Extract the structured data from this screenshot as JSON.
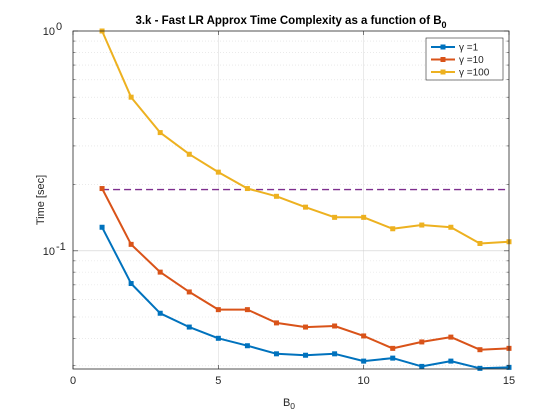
{
  "chart_data": {
    "type": "line",
    "title": "3.k - Fast LR Approx Time Complexity as a function of B",
    "title_subscript": "0",
    "xlabel": "B",
    "xlabel_subscript": "0",
    "ylabel": "Time [sec]",
    "xlim": [
      0,
      15
    ],
    "ylim": [
      0.029,
      1
    ],
    "yscale": "log",
    "xticks": [
      0,
      5,
      10,
      15
    ],
    "xtick_labels": [
      "0",
      "5",
      "10",
      "15"
    ],
    "ytick_labels": [
      {
        "value": 0.1,
        "base": "10",
        "exp": "-1"
      },
      {
        "value": 1,
        "base": "10",
        "exp": "0"
      }
    ],
    "grid": true,
    "minor_grid": true,
    "legend_position": "top-right",
    "x": [
      1,
      2,
      3,
      4,
      5,
      6,
      7,
      8,
      9,
      10,
      11,
      12,
      13,
      14,
      15
    ],
    "series": [
      {
        "name": "γ =1",
        "color": "#0072BD",
        "values": [
          0.128,
          0.071,
          0.052,
          0.045,
          0.04,
          0.037,
          0.034,
          0.0335,
          0.034,
          0.0315,
          0.0325,
          0.0298,
          0.0315,
          0.0292,
          0.0295
        ]
      },
      {
        "name": "γ =10",
        "color": "#D95319",
        "values": [
          0.192,
          0.107,
          0.08,
          0.065,
          0.054,
          0.054,
          0.047,
          0.045,
          0.0455,
          0.041,
          0.036,
          0.0385,
          0.0405,
          0.0355,
          0.036
        ]
      },
      {
        "name": "γ =100",
        "color": "#EDB120",
        "values": [
          1.0,
          0.5,
          0.345,
          0.275,
          0.228,
          0.192,
          0.177,
          0.158,
          0.142,
          0.142,
          0.126,
          0.131,
          0.128,
          0.108,
          0.11
        ]
      }
    ],
    "reference_line": {
      "y": 0.19,
      "x_start": 1,
      "x_end": 15,
      "color": "#7E2F8E",
      "style": "dashed"
    }
  }
}
